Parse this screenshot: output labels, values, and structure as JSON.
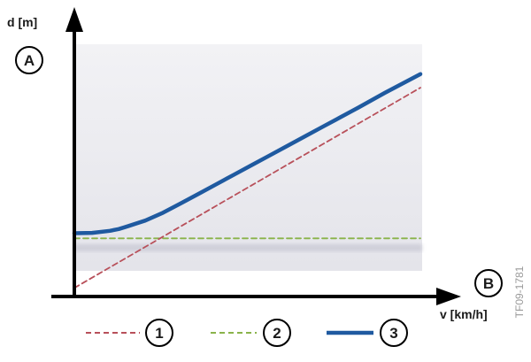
{
  "chart_data": {
    "type": "line",
    "xlabel": "v [km/h]",
    "ylabel": "d [m]",
    "axis_markers": {
      "y": "A",
      "x": "B"
    },
    "grid": false,
    "legend_position": "bottom",
    "x": [
      0,
      0.2,
      0.4,
      0.5,
      0.6,
      0.8,
      1.0,
      1.2,
      1.4,
      1.6,
      1.8,
      2.0,
      2.2,
      2.4,
      2.6,
      2.8,
      3.0,
      3.2,
      3.5,
      3.9
    ],
    "series": [
      {
        "name": "1",
        "style": "dashed",
        "color": "#b8505a",
        "values": [
          0.25,
          0.55,
          0.85,
          1.0,
          1.15,
          1.45,
          1.75,
          2.05,
          2.35,
          2.65,
          2.95,
          3.25,
          3.55,
          3.85,
          4.15,
          4.45,
          4.75,
          5.05,
          5.5,
          6.1
        ]
      },
      {
        "name": "2",
        "style": "dashed",
        "color": "#8ab34a",
        "values": [
          1.7,
          1.7,
          1.7,
          1.7,
          1.7,
          1.7,
          1.7,
          1.7,
          1.7,
          1.7,
          1.7,
          1.7,
          1.7,
          1.7,
          1.7,
          1.7,
          1.7,
          1.7,
          1.7,
          1.7
        ]
      },
      {
        "name": "3",
        "style": "solid",
        "color": "#1f5aa0",
        "values": [
          1.85,
          1.86,
          1.92,
          1.97,
          2.05,
          2.22,
          2.45,
          2.72,
          3.0,
          3.28,
          3.56,
          3.84,
          4.12,
          4.4,
          4.68,
          4.96,
          5.24,
          5.52,
          5.95,
          6.5
        ]
      }
    ],
    "xlim": [
      0,
      3.9
    ],
    "ylim": [
      0,
      7.5
    ],
    "code": "TF09-1781"
  }
}
